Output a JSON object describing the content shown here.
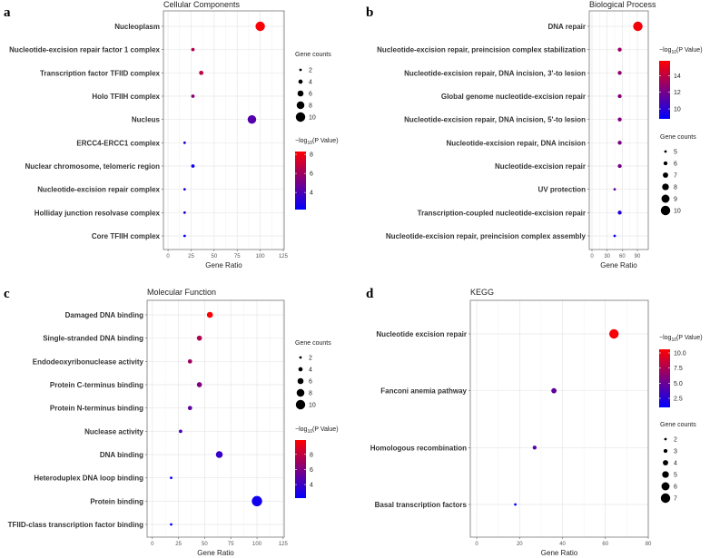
{
  "chart_data": [
    {
      "type": "scatter",
      "panel_label": "a",
      "title": "Cellular Components",
      "xlabel": "Gene Ratio",
      "xticks": [
        0,
        25,
        50,
        75,
        100,
        125
      ],
      "xlim": [
        -5,
        126
      ],
      "categories": [
        "Nucleoplasm",
        "Nucleotide-excision repair factor 1 complex",
        "Transcription factor TFIID complex",
        "Holo TFIIH complex",
        "Nucleus",
        "ERCC4-ERCC1 complex",
        "Nuclear chromosome, telomeric region",
        "Nucleotide-excision repair complex",
        "Holliday junction resolvase complex",
        "Core TFIIH complex"
      ],
      "gene_ratio": [
        100,
        27,
        36,
        27,
        91,
        18,
        27,
        18,
        18,
        18
      ],
      "gene_counts": [
        10,
        3,
        4,
        3,
        9,
        2,
        3,
        2,
        2,
        2
      ],
      "neg_log10_p": [
        8.2,
        6.5,
        6.8,
        5.5,
        4.2,
        3.0,
        2.5,
        3.0,
        2.8,
        2.3
      ],
      "size_legend": {
        "title": "Gene counts",
        "values": [
          2,
          4,
          6,
          8,
          10
        ]
      },
      "color_legend": {
        "title_prefix": "−log",
        "title_sub": "10",
        "title_suffix": "(P Value)",
        "ticks": [
          4,
          6,
          8
        ],
        "range": [
          2.2,
          8.3
        ],
        "low": "#0000ff",
        "high": "#ff0000"
      }
    },
    {
      "type": "scatter",
      "panel_label": "b",
      "title": "Biological Process",
      "xlabel": "Gene Ratio",
      "xticks": [
        0,
        30,
        60,
        90
      ],
      "xlim": [
        -5.4,
        111.6
      ],
      "categories": [
        "DNA repair",
        "Nucleotide-excision repair, preincision complex stabilization",
        "Nucleotide-excision repair, DNA incision, 3'-to lesion",
        "Global genome nucleotide-excision repair",
        "Nucleotide-excision repair, DNA incision, 5'-to lesion",
        "Nucleotide-excision repair, DNA incision",
        "Nucleotide-excision repair",
        "UV protection",
        "Transcription-coupled nucleotide-excision repair",
        "Nucleotide-excision repair, preincision complex assembly"
      ],
      "gene_ratio": [
        91,
        55,
        55,
        55,
        55,
        55,
        55,
        45,
        55,
        45
      ],
      "gene_counts": [
        10,
        6,
        6,
        6,
        6,
        6,
        6,
        5,
        6,
        5
      ],
      "neg_log10_p": [
        15.5,
        13.0,
        12.8,
        12.5,
        12.3,
        12.2,
        12.0,
        11.5,
        9.9,
        9.0
      ],
      "size_legend": {
        "title": "Gene counts",
        "values": [
          5,
          6,
          7,
          8,
          9,
          10
        ]
      },
      "color_legend": {
        "title_prefix": "−log",
        "title_sub": "10",
        "title_suffix": "(P Value)",
        "ticks": [
          10,
          12,
          14
        ],
        "range": [
          8.8,
          15.8
        ],
        "low": "#0000ff",
        "high": "#ff0000"
      }
    },
    {
      "type": "scatter",
      "panel_label": "c",
      "title": "Molecular Function",
      "xlabel": "Gene Ratio",
      "xticks": [
        0,
        25,
        50,
        75,
        100,
        125
      ],
      "xlim": [
        -5,
        126
      ],
      "categories": [
        "Damaged DNA binding",
        "Single-stranded DNA binding",
        "Endodeoxyribonuclease activity",
        "Protein C-terminus binding",
        "Protein N-terminus binding",
        "Nuclease activity",
        "DNA binding",
        "Heteroduplex DNA loop binding",
        "Protein binding",
        "TFIID-class transcription factor binding"
      ],
      "gene_ratio": [
        55,
        45,
        36,
        45,
        36,
        27,
        64,
        18,
        100,
        18
      ],
      "gene_counts": [
        6,
        5,
        4,
        5,
        4,
        3,
        7,
        2,
        11,
        2
      ],
      "neg_log10_p": [
        9.8,
        7.5,
        7.0,
        6.0,
        5.0,
        4.3,
        3.8,
        2.5,
        2.7,
        2.3
      ],
      "size_legend": {
        "title": "Gene counts",
        "values": [
          2,
          4,
          6,
          8,
          10
        ]
      },
      "color_legend": {
        "title_prefix": "−log",
        "title_sub": "10",
        "title_suffix": "(P Value)",
        "ticks": [
          4,
          6,
          8
        ],
        "range": [
          2.2,
          9.9
        ],
        "low": "#0000ff",
        "high": "#ff0000"
      }
    },
    {
      "type": "scatter",
      "panel_label": "d",
      "title": "KEGG",
      "xlabel": "Gene Ratio",
      "xticks": [
        0,
        20,
        40,
        60,
        80
      ],
      "xlim": [
        -3,
        80
      ],
      "categories": [
        "Nucleotide excision repair",
        "Fanconi anemia pathway",
        "Homologous recombination",
        "Basal transcription factors"
      ],
      "gene_ratio": [
        64,
        36,
        27,
        18
      ],
      "gene_counts": [
        7,
        4,
        3,
        2
      ],
      "neg_log10_p": [
        10.3,
        4.6,
        4.2,
        1.2
      ],
      "size_legend": {
        "title": "Gene counts",
        "values": [
          2,
          3,
          4,
          5,
          6,
          7
        ]
      },
      "color_legend": {
        "title_prefix": "−log",
        "title_sub": "10",
        "title_suffix": "(P Value)",
        "ticks": [
          "2.5",
          "5.0",
          "7.5",
          "10.0"
        ],
        "range": [
          1.0,
          10.6
        ],
        "low": "#0000ff",
        "high": "#ff0000"
      }
    }
  ]
}
